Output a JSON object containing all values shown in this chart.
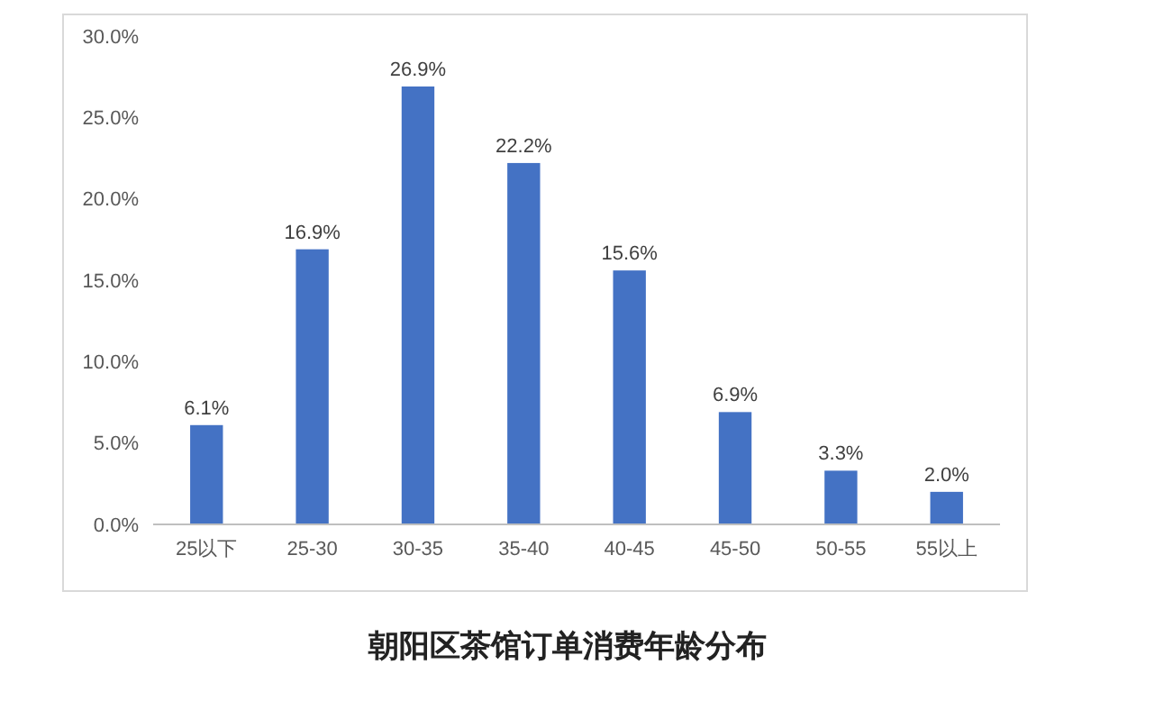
{
  "chart_data": {
    "type": "bar",
    "title": "朝阳区茶馆订单消费年龄分布",
    "categories": [
      "25以下",
      "25-30",
      "30-35",
      "35-40",
      "40-45",
      "45-50",
      "50-55",
      "55以上"
    ],
    "values": [
      6.1,
      16.9,
      26.9,
      22.2,
      15.6,
      6.9,
      3.3,
      2.0
    ],
    "value_labels": [
      "6.1%",
      "16.9%",
      "26.9%",
      "22.2%",
      "15.6%",
      "6.9%",
      "3.3%",
      "2.0%"
    ],
    "color": "#4472c4",
    "ylim": [
      0,
      30
    ],
    "yticks": [
      {
        "value": 0,
        "label": "0.0%"
      },
      {
        "value": 5,
        "label": "5.0%"
      },
      {
        "value": 10,
        "label": "10.0%"
      },
      {
        "value": 15,
        "label": "15.0%"
      },
      {
        "value": 20,
        "label": "20.0%"
      },
      {
        "value": 25,
        "label": "25.0%"
      },
      {
        "value": 30,
        "label": "30.0%"
      }
    ]
  }
}
